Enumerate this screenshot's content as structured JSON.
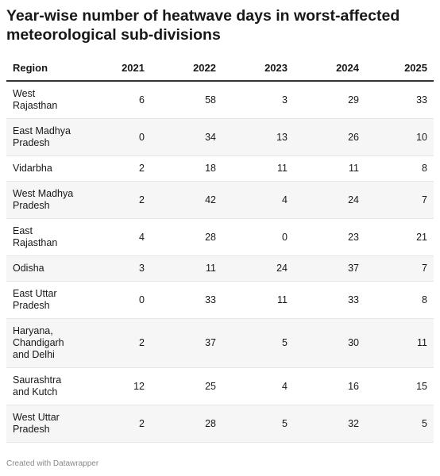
{
  "header": {
    "title": "Year-wise number of heatwave days in worst-affected meteorological sub-divisions"
  },
  "table": {
    "columns": [
      "Region",
      "2021",
      "2022",
      "2023",
      "2024",
      "2025"
    ],
    "rows": [
      [
        "West Rajasthan",
        6,
        58,
        3,
        29,
        33
      ],
      [
        "East Madhya Pradesh",
        0,
        34,
        13,
        26,
        10
      ],
      [
        "Vidarbha",
        2,
        18,
        11,
        11,
        8
      ],
      [
        "West Madhya Pradesh",
        2,
        42,
        4,
        24,
        7
      ],
      [
        "East Rajasthan",
        4,
        28,
        0,
        23,
        21
      ],
      [
        "Odisha",
        3,
        11,
        24,
        37,
        7
      ],
      [
        "East Uttar Pradesh",
        0,
        33,
        11,
        33,
        8
      ],
      [
        "Haryana, Chandigarh and Delhi",
        2,
        37,
        5,
        30,
        11
      ],
      [
        "Saurashtra and Kutch",
        12,
        25,
        4,
        16,
        15
      ],
      [
        "West Uttar Pradesh",
        2,
        28,
        5,
        32,
        5
      ]
    ]
  },
  "footer": {
    "note": "Created with Datawrapper"
  }
}
